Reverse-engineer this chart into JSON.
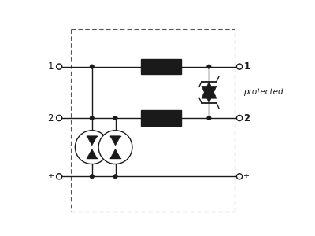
{
  "bg_color": "#ffffff",
  "line_color": "#1a1a1a",
  "dash_color": "#555555",
  "fill_color": "#1a1a1a",
  "label_protected": "protected",
  "figsize": [
    4.0,
    3.0
  ],
  "dpi": 100
}
